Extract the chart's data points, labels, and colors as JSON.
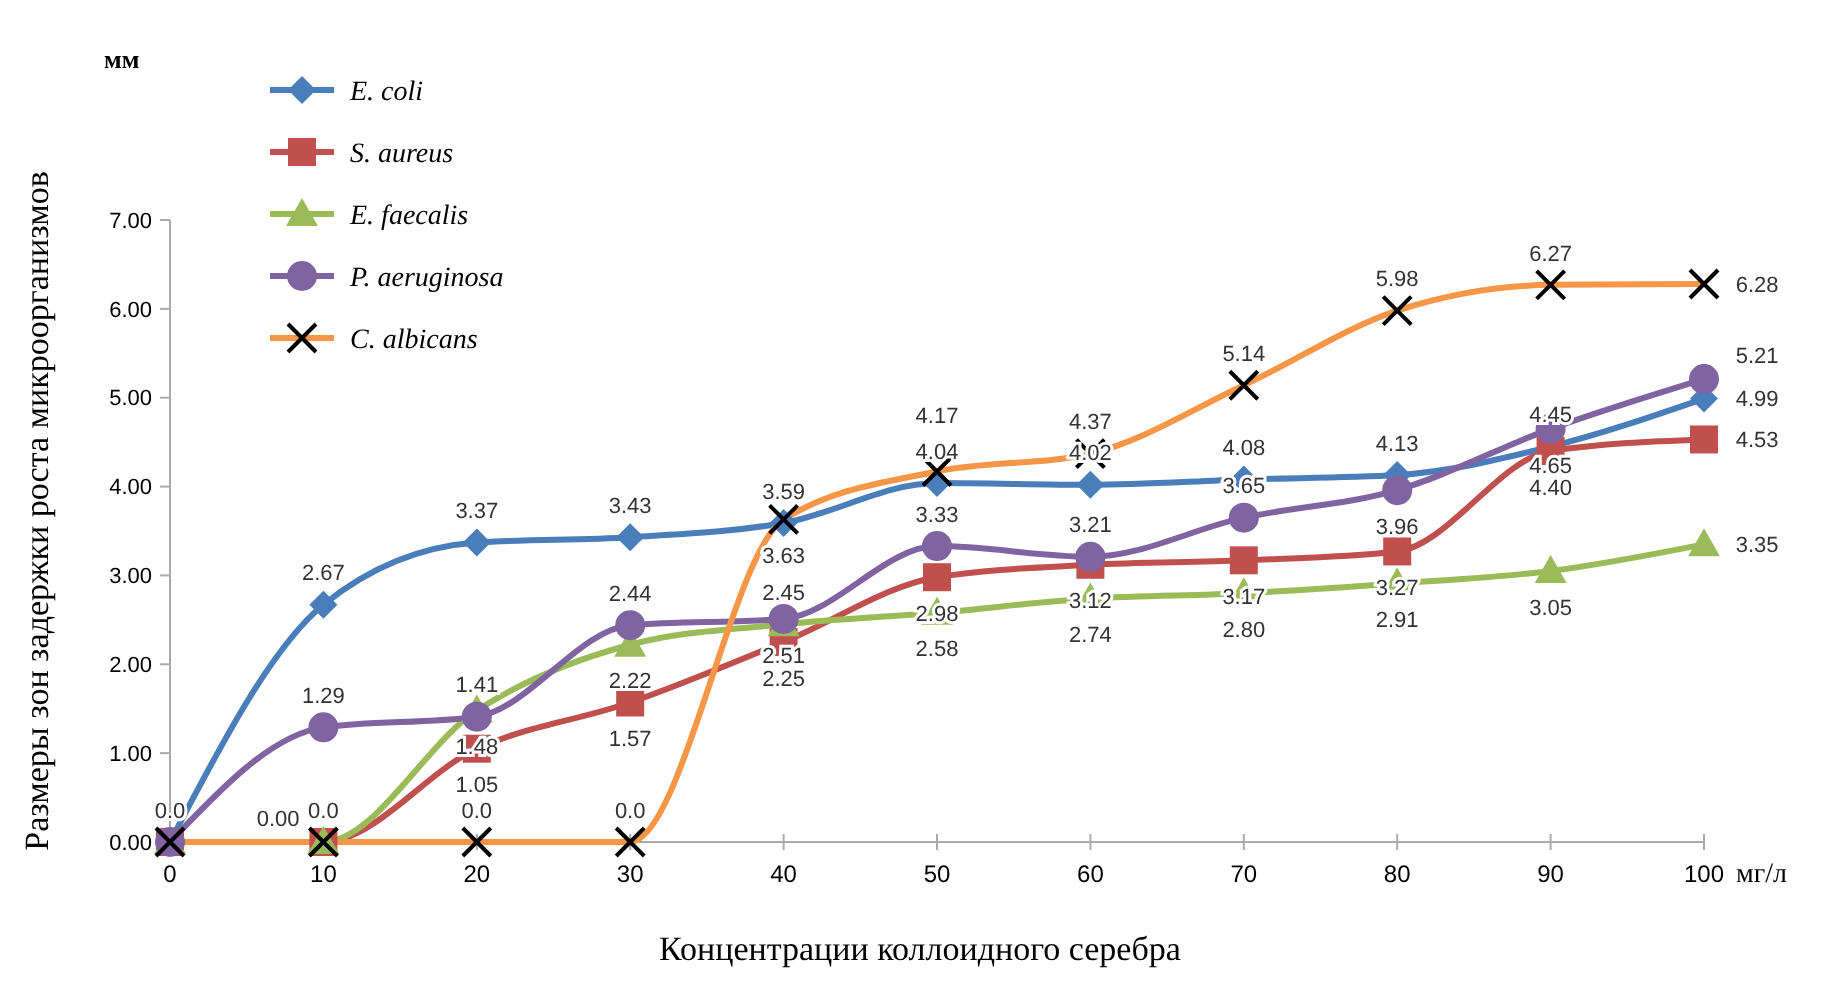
{
  "chart_data": {
    "type": "line",
    "xlabel": "Концентрации коллоидного серебра",
    "ylabel": "Размеры зон задержки роста микроорганизмов",
    "annotations": [
      "мм",
      "мг/л"
    ],
    "x": [
      0,
      10,
      20,
      30,
      40,
      50,
      60,
      70,
      80,
      90,
      100
    ],
    "xlim": [
      0,
      100
    ],
    "xticks": [
      0,
      10,
      20,
      30,
      40,
      50,
      60,
      70,
      80,
      90,
      100
    ],
    "ylim": [
      0,
      7
    ],
    "yticks": [
      {
        "value": 0,
        "label": "0.00"
      },
      {
        "value": 1,
        "label": "1.00"
      },
      {
        "value": 2,
        "label": "2.00"
      },
      {
        "value": 3,
        "label": "3.00"
      },
      {
        "value": 4,
        "label": "4.00"
      },
      {
        "value": 5,
        "label": "5.00"
      },
      {
        "value": 6,
        "label": "6.00"
      },
      {
        "value": 7,
        "label": "7.00"
      }
    ],
    "grid": false,
    "legend": "top left",
    "line_style": "solid",
    "series": [
      {
        "name": "E. coli",
        "color": "#4a7ebb",
        "marker": "diamond",
        "values": [
          0,
          2.67,
          3.37,
          3.43,
          3.59,
          4.04,
          4.02,
          4.08,
          4.13,
          4.45,
          4.99
        ],
        "value_labels": [
          "0.0",
          "2.67",
          "3.37",
          "3.43",
          "3.59",
          "4.04",
          "4.02",
          "4.08",
          "4.13",
          "4.45",
          "4.99"
        ]
      },
      {
        "name": "S. aureus",
        "color": "#c0504d",
        "marker": "square",
        "values": [
          0,
          0,
          1.05,
          1.57,
          2.25,
          2.98,
          3.12,
          3.17,
          3.27,
          4.4,
          4.53
        ],
        "value_labels": [
          null,
          "0.0",
          "1.05",
          "1.57",
          "2.25",
          "2.98",
          "3.12",
          "3.17",
          "3.27",
          "4.40",
          "4.53"
        ]
      },
      {
        "name": "E. faecalis",
        "color": "#9bbb59",
        "marker": "triangle",
        "values": [
          0,
          0,
          1.48,
          2.22,
          2.45,
          2.58,
          2.74,
          2.8,
          2.91,
          3.05,
          3.35
        ],
        "value_labels": [
          null,
          "0.00",
          "1.48",
          "2.22",
          "2.45",
          "2.58",
          "2.74",
          "2.80",
          "2.91",
          "3.05",
          "3.35"
        ]
      },
      {
        "name": "P. aeruginosa",
        "color": "#8064a2",
        "marker": "circle",
        "values": [
          0,
          1.29,
          1.41,
          2.44,
          2.51,
          3.33,
          3.21,
          3.65,
          3.96,
          4.65,
          5.21
        ],
        "value_labels": [
          null,
          "1.29",
          "1.41",
          "2.44",
          "2.51",
          "3.33",
          "3.21",
          "3.65",
          "3.96",
          "4.65",
          "5.21"
        ]
      },
      {
        "name": "C. albicans",
        "color": "#f79646",
        "marker": "cross",
        "values": [
          0,
          0,
          0,
          0,
          3.63,
          4.17,
          4.37,
          5.14,
          5.98,
          6.27,
          6.28
        ],
        "value_labels": [
          null,
          null,
          "0.0",
          "0.0",
          "3.63",
          "4.17",
          "4.37",
          "5.14",
          "5.98",
          "6.27",
          "6.28"
        ]
      }
    ]
  }
}
